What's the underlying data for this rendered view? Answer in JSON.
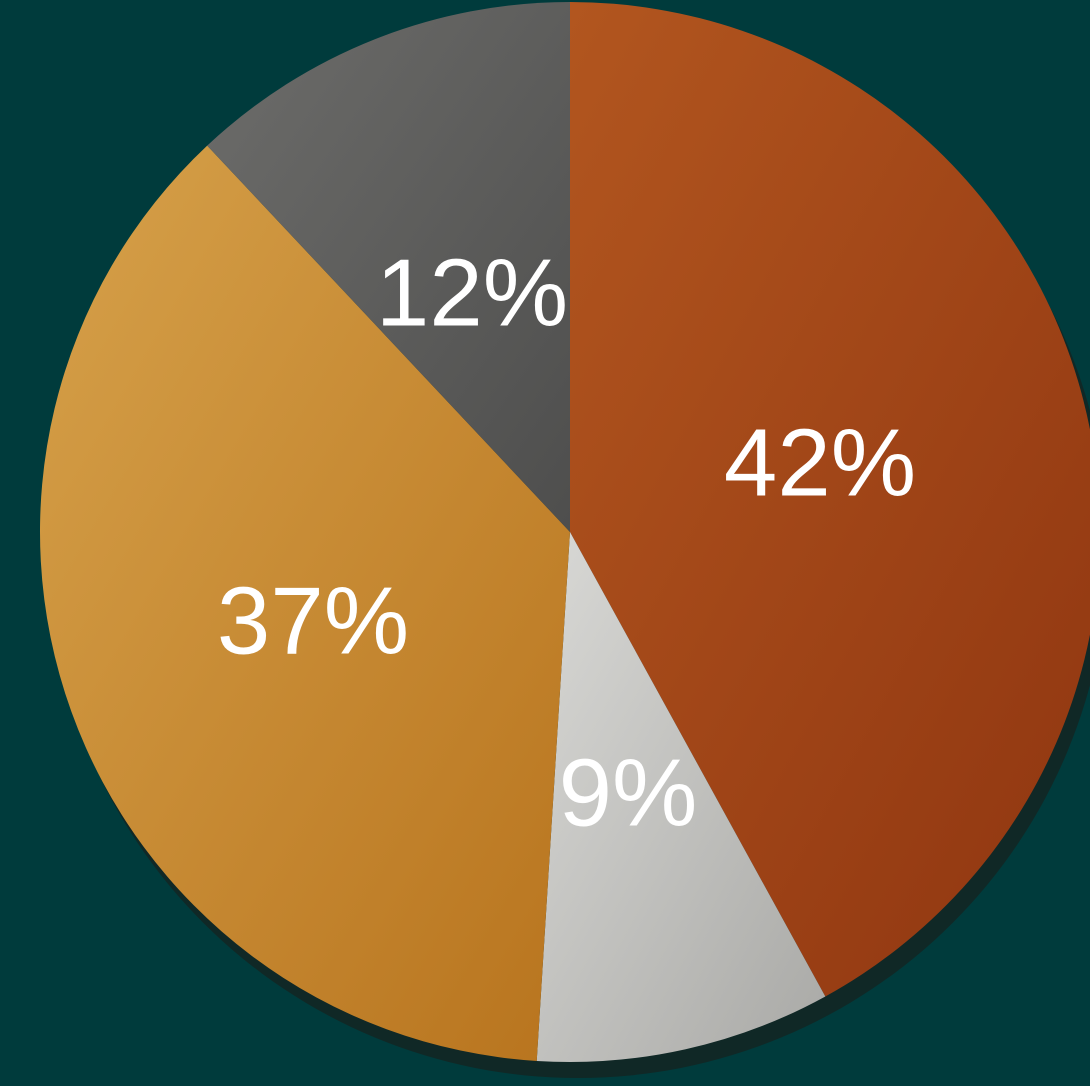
{
  "chart_data": {
    "type": "pie",
    "title": "",
    "start_angle_deg": 0,
    "direction": "clockwise",
    "slices": [
      {
        "label": "42%",
        "value": 42,
        "color": "#8f3510",
        "color_light": "#b2561f"
      },
      {
        "label": "9%",
        "value": 9,
        "color": "#a9a9a6",
        "color_light": "#d9d9d6"
      },
      {
        "label": "37%",
        "value": 37,
        "color": "#b8741e",
        "color_light": "#d6a14a"
      },
      {
        "label": "12%",
        "value": 12,
        "color": "#4e4e4d",
        "color_light": "#6d6d6b"
      }
    ]
  },
  "colors": {
    "background": "#003b3c",
    "label_text": "#ffffff"
  }
}
